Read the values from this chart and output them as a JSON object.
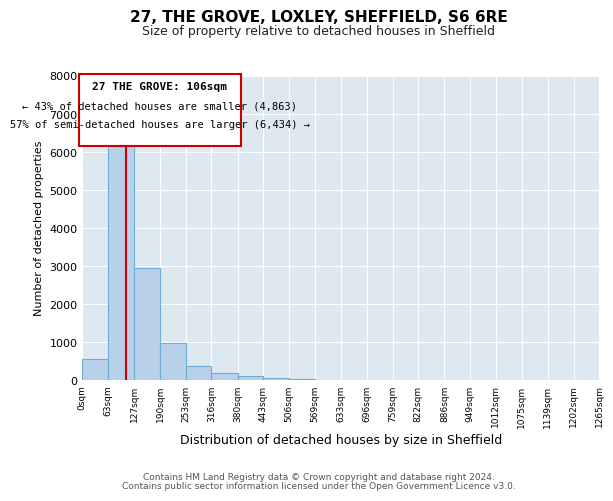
{
  "title": "27, THE GROVE, LOXLEY, SHEFFIELD, S6 6RE",
  "subtitle": "Size of property relative to detached houses in Sheffield",
  "xlabel": "Distribution of detached houses by size in Sheffield",
  "ylabel": "Number of detached properties",
  "bin_edges": [
    0,
    63,
    127,
    190,
    253,
    316,
    380,
    443,
    506,
    569,
    633,
    696,
    759,
    822,
    886,
    949,
    1012,
    1075,
    1139,
    1202,
    1265
  ],
  "bar_heights": [
    550,
    6400,
    2950,
    970,
    380,
    190,
    110,
    50,
    40,
    0,
    0,
    0,
    0,
    0,
    0,
    0,
    0,
    0,
    0,
    0
  ],
  "property_size": 106,
  "ylim": [
    0,
    8000
  ],
  "bar_color": "#b8d0ea",
  "bar_edge_color": "#6baed6",
  "vline_color": "#cc0000",
  "annotation_line1": "27 THE GROVE: 106sqm",
  "annotation_line2": "← 43% of detached houses are smaller (4,863)",
  "annotation_line3": "57% of semi-detached houses are larger (6,434) →",
  "annotation_box_color": "#cc0000",
  "footer_line1": "Contains HM Land Registry data © Crown copyright and database right 2024.",
  "footer_line2": "Contains public sector information licensed under the Open Government Licence v3.0.",
  "plot_bg_color": "#dde8f0",
  "xtick_labels": [
    "0sqm",
    "63sqm",
    "127sqm",
    "190sqm",
    "253sqm",
    "316sqm",
    "380sqm",
    "443sqm",
    "506sqm",
    "569sqm",
    "633sqm",
    "696sqm",
    "759sqm",
    "822sqm",
    "886sqm",
    "949sqm",
    "1012sqm",
    "1075sqm",
    "1139sqm",
    "1202sqm",
    "1265sqm"
  ],
  "ytick_labels": [
    "0",
    "1000",
    "2000",
    "3000",
    "4000",
    "5000",
    "6000",
    "7000",
    "8000"
  ],
  "ytick_values": [
    0,
    1000,
    2000,
    3000,
    4000,
    5000,
    6000,
    7000,
    8000
  ]
}
